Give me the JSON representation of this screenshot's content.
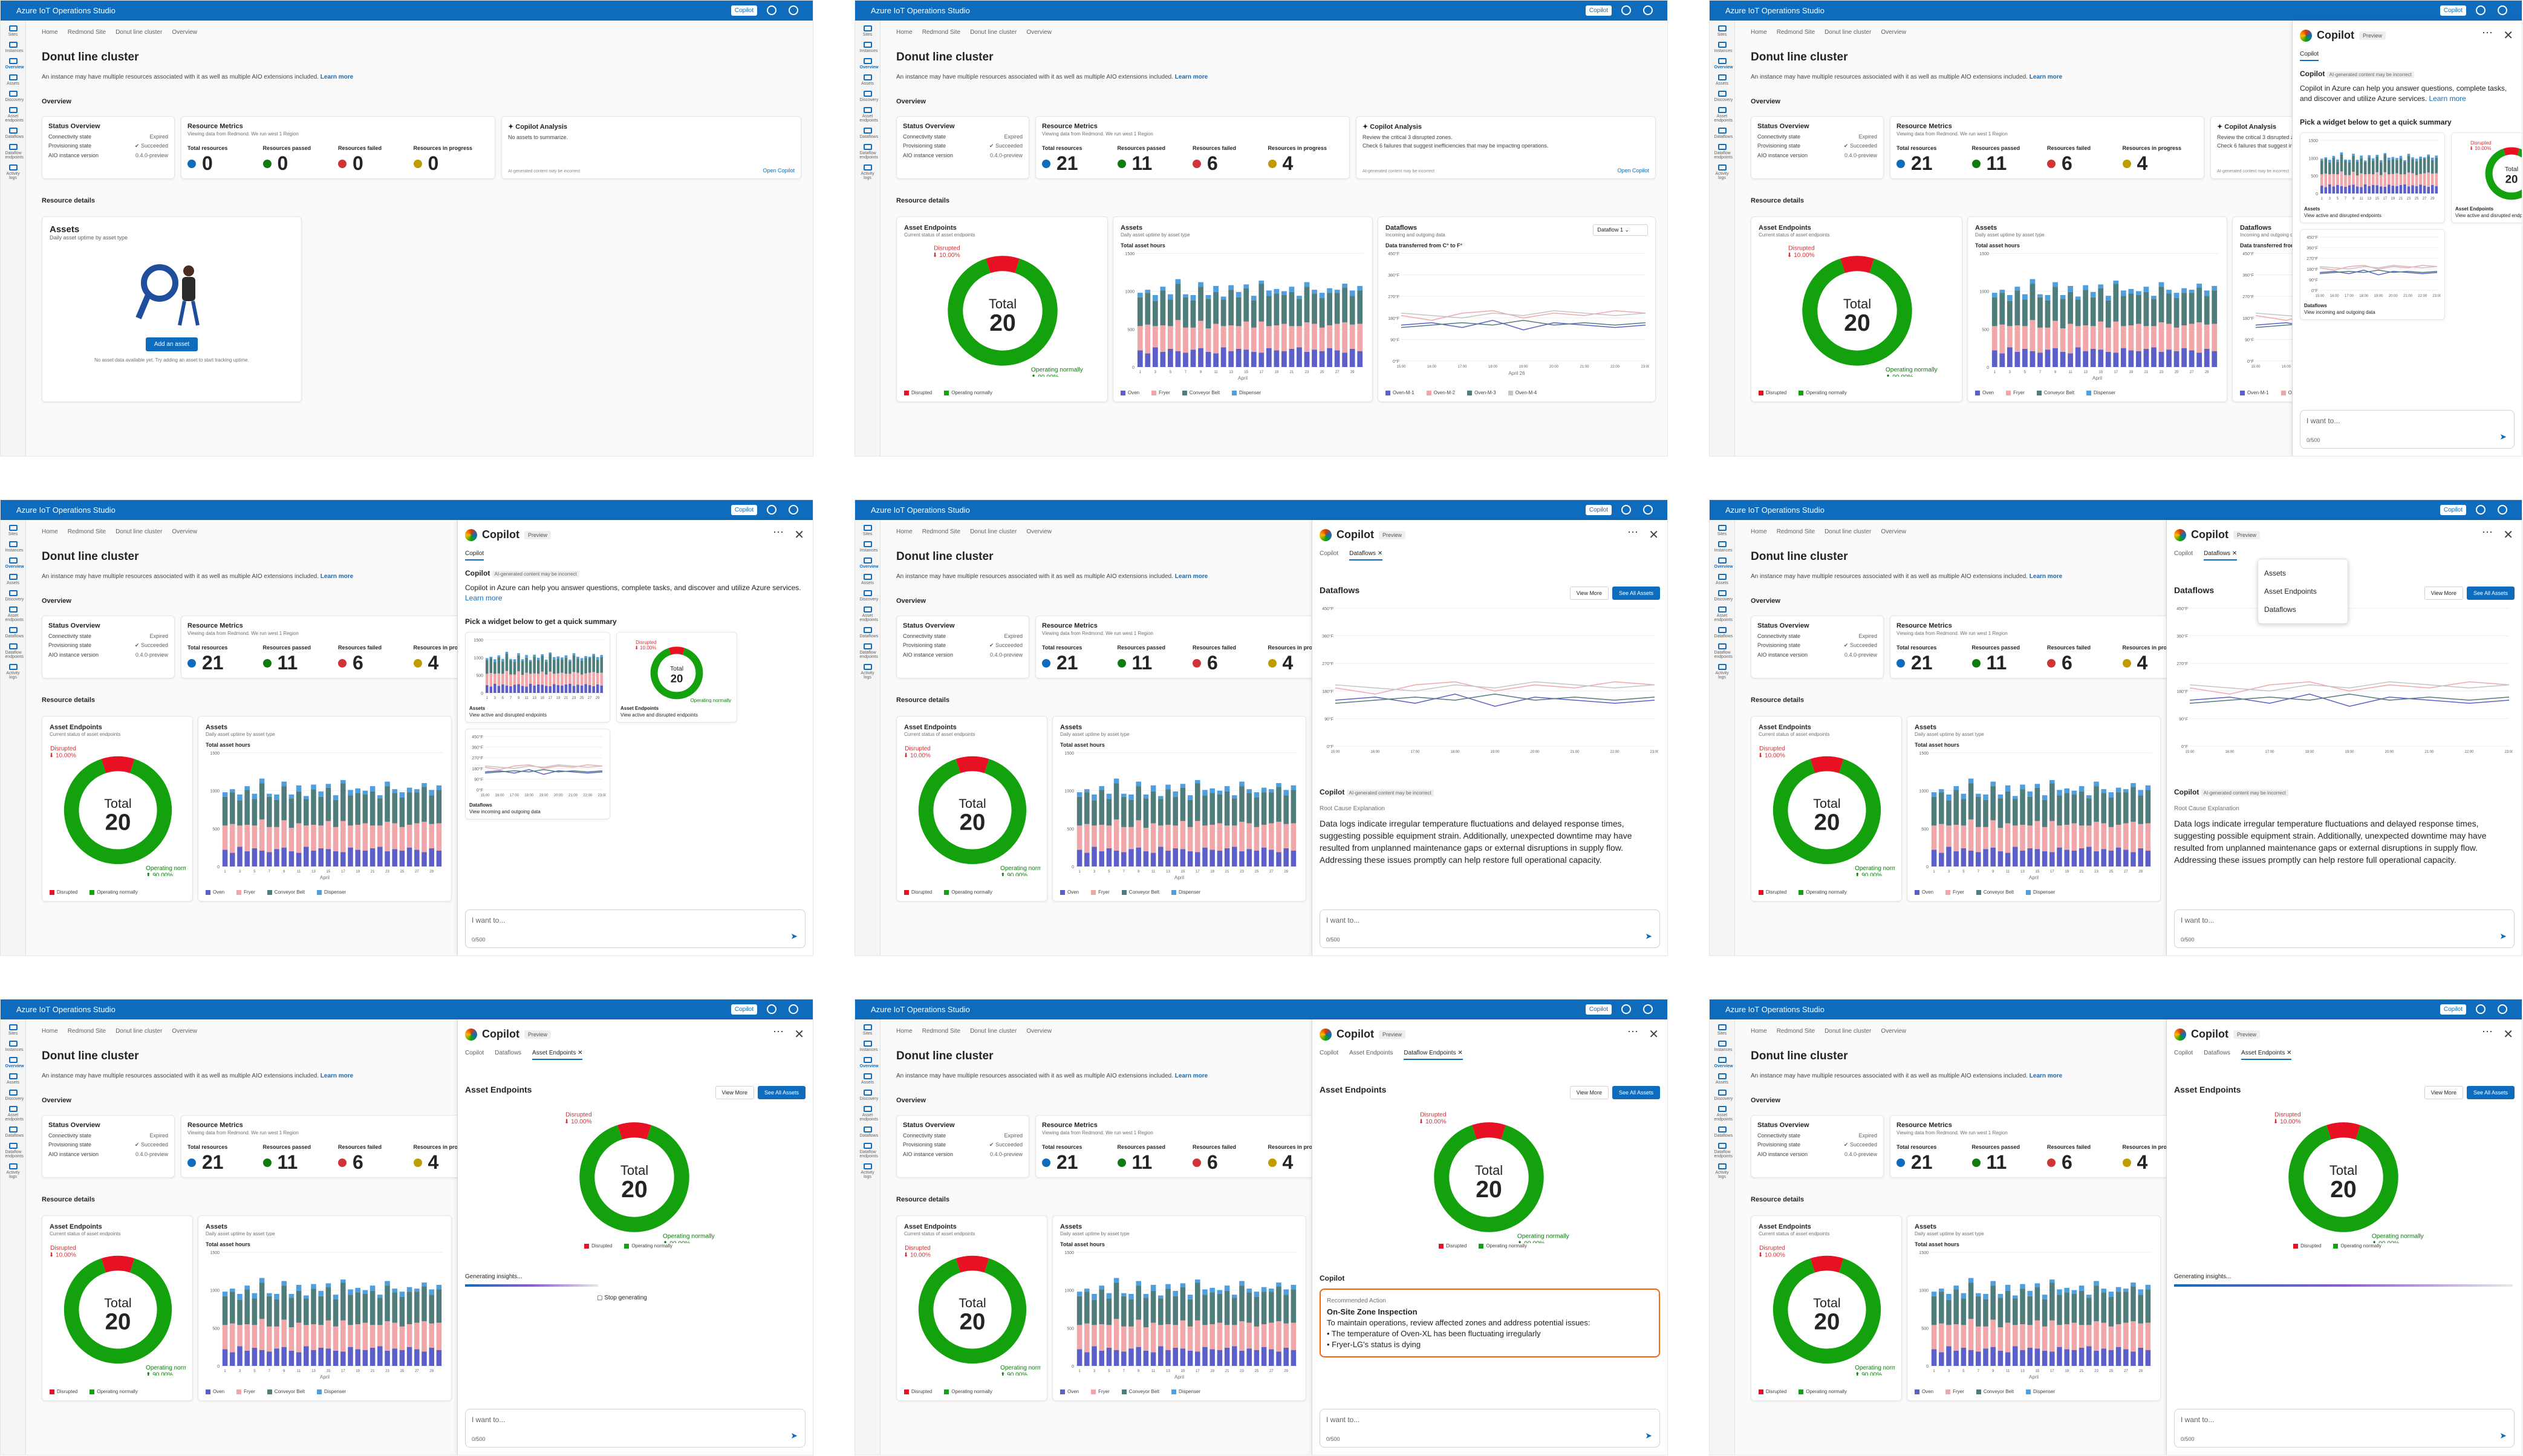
{
  "app_title": "Azure IoT Operations Studio",
  "copilot_button": "Copilot",
  "nav": [
    "Sites",
    "Instances",
    "Overview",
    "Assets",
    "Discovery",
    "Asset endpoints",
    "Dataflows",
    "Dataflow endpoints",
    "Activity logs"
  ],
  "breadcrumb": [
    "Home",
    "Redmond Site",
    "Donut line cluster",
    "Overview"
  ],
  "page_title": "Donut line cluster",
  "page_desc": "An instance may have multiple resources associated with it as well as multiple AIO extensions included.",
  "learn_more": "Learn more",
  "overview_label": "Overview",
  "status": {
    "title": "Status Overview",
    "rows": [
      {
        "k": "Connectivity state",
        "v": "Expired"
      },
      {
        "k": "Provisioning state",
        "v": "Succeeded"
      },
      {
        "k": "AIO instance version",
        "v": "0.4.0-preview"
      }
    ]
  },
  "metrics": {
    "title": "Resource Metrics",
    "subtitle": "Viewing data from Redmond. We run west 1 Region",
    "labels": [
      "Total resources",
      "Resources passed",
      "Resources failed",
      "Resources in progress"
    ],
    "colors": [
      "#0f6cbd",
      "#107c10",
      "#d13438",
      "#c19c00"
    ],
    "empty_values": [
      "0",
      "0",
      "0",
      "0"
    ],
    "values": [
      "21",
      "11",
      "6",
      "4"
    ]
  },
  "copilot_analysis": {
    "title": "Copilot Analysis",
    "empty_text": "No assets to summarize.",
    "line1": "Review the critical 3 disrupted zones.",
    "line2": "Check 6 failures that suggest inefficiencies that may be impacting operations.",
    "disclaimer": "AI-generated content may be incorrect",
    "open": "Open Copilot"
  },
  "resource_details": "Resource details",
  "empty_assets": {
    "title": "Assets",
    "subtitle": "Daily asset uptime by asset type",
    "button": "Add an asset",
    "note": "No asset data available yet. Try adding an asset to start tracking uptime."
  },
  "asset_endpoints": {
    "title": "Asset Endpoints",
    "subtitle": "Current status of asset endpoints",
    "total_label": "Total",
    "total": "20",
    "disrupted_label": "Disrupted",
    "disrupted_pct": "10.00%",
    "normal_label": "Operating normally",
    "normal_pct": "90.00%"
  },
  "assets_chart": {
    "title": "Assets",
    "subtitle": "Daily asset uptime by asset type",
    "ylabel": "Total asset hours",
    "xlabel": "April",
    "legend": [
      "Oven",
      "Fryer",
      "Conveyor Belt",
      "Dispenser"
    ],
    "colors": [
      "#5b5fc7",
      "#f1a7a9",
      "#4f7d7b",
      "#4f9ede"
    ]
  },
  "dataflows": {
    "title": "Dataflows",
    "subtitle": "Incoming and outgoing data",
    "select": "Dataflow 1",
    "chart_title": "Data transferred from C° to F°",
    "date": "April 26",
    "legend": [
      "Oven-M-1",
      "Oven-M-2",
      "Oven-M-3",
      "Oven-M-4"
    ],
    "colors": [
      "#5b5fc7",
      "#f1a7a9",
      "#4f7d7b",
      "#c4c4c4"
    ]
  },
  "chart_data": [
    {
      "type": "pie",
      "title": "Asset Endpoints",
      "categories": [
        "Disrupted",
        "Operating normally"
      ],
      "values": [
        10,
        90
      ],
      "colors": [
        "#e81123",
        "#13a10e"
      ]
    },
    {
      "type": "bar",
      "title": "Assets",
      "xlabel": "April",
      "ylabel": "Total asset hours",
      "categories": [
        "1",
        "2",
        "3",
        "4",
        "5",
        "6",
        "7",
        "8",
        "9",
        "10",
        "11",
        "12",
        "13",
        "14",
        "15",
        "16",
        "17",
        "18",
        "19",
        "20",
        "21",
        "22",
        "23",
        "24",
        "25",
        "26",
        "27",
        "28",
        "29",
        "30"
      ],
      "ylim": [
        0,
        1500
      ],
      "series": [
        {
          "name": "Oven",
          "values": [
            220,
            180,
            260,
            200,
            240,
            210,
            190,
            230,
            250,
            200,
            180,
            260,
            210,
            240,
            230,
            200,
            190,
            250,
            220,
            210,
            240,
            260,
            200,
            230,
            210,
            250,
            220,
            190,
            240,
            210
          ]
        },
        {
          "name": "Fryer",
          "values": [
            320,
            380,
            280,
            350,
            300,
            410,
            330,
            290,
            360,
            310,
            390,
            280,
            340,
            300,
            370,
            320,
            410,
            290,
            330,
            360,
            300,
            280,
            390,
            340,
            310,
            300,
            350,
            400,
            320,
            360
          ]
        },
        {
          "name": "Conveyor Belt",
          "values": [
            380,
            420,
            330,
            460,
            350,
            480,
            400,
            360,
            450,
            390,
            420,
            350,
            470,
            380,
            440,
            360,
            500,
            400,
            420,
            380,
            450,
            360,
            470,
            400,
            390,
            430,
            410,
            460,
            380,
            440
          ]
        },
        {
          "name": "Dispenser",
          "values": [
            60,
            40,
            80,
            50,
            70,
            60,
            40,
            70,
            60,
            50,
            80,
            40,
            60,
            70,
            50,
            60,
            40,
            70,
            60,
            50,
            70,
            40,
            60,
            50,
            70,
            60,
            40,
            50,
            70,
            60
          ]
        }
      ]
    },
    {
      "type": "line",
      "title": "Data transferred from C° to F°",
      "xlabel": "April 26",
      "categories": [
        "15:00",
        "16:00",
        "17:00",
        "18:00",
        "19:00",
        "20:00",
        "21:00",
        "22:00",
        "23:00"
      ],
      "ylim": [
        0,
        450
      ],
      "series": [
        {
          "name": "Oven-M-1",
          "values": [
            150,
            160,
            140,
            170,
            130,
            160,
            150,
            140,
            150
          ]
        },
        {
          "name": "Oven-M-2",
          "values": [
            190,
            170,
            200,
            210,
            180,
            200,
            190,
            210,
            200
          ]
        },
        {
          "name": "Oven-M-3",
          "values": [
            140,
            150,
            160,
            150,
            170,
            150,
            160,
            150,
            160
          ]
        },
        {
          "name": "Oven-M-4",
          "values": [
            200,
            190,
            180,
            200,
            190,
            210,
            200,
            190,
            200
          ]
        }
      ]
    }
  ],
  "copilot_panel": {
    "title": "Copilot",
    "badge": "Preview",
    "intro": "Copilot in Azure can help you answer questions, complete tasks, and discover and utilize Azure services.",
    "learn_more": "Learn more",
    "disclaimer": "AI-generated content may be incorrect",
    "pick": "Pick a widget below to get a quick summary",
    "widgets": [
      {
        "title": "Assets",
        "desc": "View active and disrupted endpoints"
      },
      {
        "title": "Asset Endpoints",
        "desc": "View active and disrupted endpoints"
      },
      {
        "title": "Dataflows",
        "desc": "View incoming and outgoing data"
      }
    ],
    "input_placeholder": "I want to...",
    "counter": "0/500",
    "view_more": "View More",
    "see_all": "See All Assets",
    "root_cause_head": "Root Cause Explanation",
    "root_cause": "Data logs indicate irregular temperature fluctuations and delayed response times, suggesting possible equipment strain. Additionally, unexpected downtime may have resulted from unplanned maintenance gaps or external disruptions in supply flow. Addressing these issues promptly can help restore full operational capacity.",
    "dropdown": [
      "Assets",
      "Asset Endpoints",
      "Dataflows"
    ],
    "generating": "Generating insights...",
    "stop": "Stop generating",
    "rec_head": "Recommended Action",
    "rec_title": "On-Site Zone Inspection",
    "rec_text": "To maintain operations, review affected zones and address potential issues:",
    "rec_b1": "The temperature of Oven-XL has been fluctuating irregularly",
    "rec_b2": "Fryer-LG's status is dying",
    "tabs_copilot": "Copilot",
    "tabs_dataflows": "Dataflows",
    "tabs_asset_endpoints": "Asset Endpoints",
    "tabs_dataflow_endpoints": "Dataflow Endpoints"
  }
}
